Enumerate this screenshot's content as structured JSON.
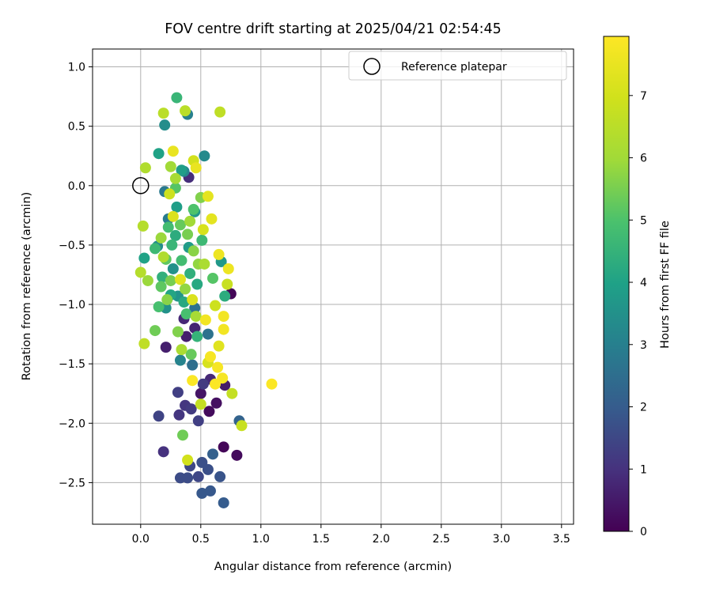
{
  "chart_data": {
    "type": "scatter",
    "title": "FOV centre drift starting at 2025/04/21 02:54:45",
    "xlabel": "Angular distance from reference (arcmin)",
    "ylabel": "Rotation from reference (arcmin)",
    "xlim": [
      -0.4,
      3.6
    ],
    "ylim": [
      -2.85,
      1.15
    ],
    "xticks": [
      0.0,
      0.5,
      1.0,
      1.5,
      2.0,
      2.5,
      3.0,
      3.5
    ],
    "xtick_labels": [
      "0.0",
      "0.5",
      "1.0",
      "1.5",
      "2.0",
      "2.5",
      "3.0",
      "3.5"
    ],
    "yticks": [
      1.0,
      0.5,
      0.0,
      -0.5,
      -1.0,
      -1.5,
      -2.0,
      -2.5
    ],
    "ytick_labels": [
      "1.0",
      "0.5",
      "0.0",
      "−0.5",
      "−1.0",
      "−1.5",
      "−2.0",
      "−2.5"
    ],
    "grid": true,
    "legend": {
      "location": "top-right",
      "entries": [
        "Reference platepar"
      ]
    },
    "reference_point": {
      "x": 0.0,
      "y": 0.0,
      "marker": "hollow-circle"
    },
    "colorbar": {
      "label": "Hours from first FF file",
      "colormap": "viridis",
      "range": [
        0,
        7.95
      ],
      "ticks": [
        0,
        1,
        2,
        3,
        4,
        5,
        6,
        7
      ],
      "tick_labels": [
        "0",
        "1",
        "2",
        "3",
        "4",
        "5",
        "6",
        "7"
      ]
    },
    "points": [
      {
        "x": 0.75,
        "y": -0.91,
        "c": 0.1
      },
      {
        "x": 0.69,
        "y": -2.2,
        "c": 0.1
      },
      {
        "x": 0.8,
        "y": -2.27,
        "c": 0.2
      },
      {
        "x": 0.57,
        "y": -1.9,
        "c": 0.2
      },
      {
        "x": 0.63,
        "y": -1.83,
        "c": 0.3
      },
      {
        "x": 0.5,
        "y": -1.75,
        "c": 0.4
      },
      {
        "x": 0.7,
        "y": -1.68,
        "c": 0.5
      },
      {
        "x": 0.21,
        "y": -1.36,
        "c": 0.6
      },
      {
        "x": 0.38,
        "y": -1.27,
        "c": 0.6
      },
      {
        "x": 0.45,
        "y": -1.2,
        "c": 0.7
      },
      {
        "x": 0.36,
        "y": -1.12,
        "c": 0.8
      },
      {
        "x": 0.58,
        "y": -1.63,
        "c": 0.8
      },
      {
        "x": 0.4,
        "y": 0.07,
        "c": 0.9
      },
      {
        "x": 0.19,
        "y": -2.24,
        "c": 1.0
      },
      {
        "x": 0.32,
        "y": -1.93,
        "c": 1.1
      },
      {
        "x": 0.37,
        "y": -1.85,
        "c": 1.1
      },
      {
        "x": 0.42,
        "y": -1.88,
        "c": 1.2
      },
      {
        "x": 0.52,
        "y": -1.67,
        "c": 1.2
      },
      {
        "x": 0.48,
        "y": -1.98,
        "c": 1.3
      },
      {
        "x": 0.31,
        "y": -1.74,
        "c": 1.3
      },
      {
        "x": 0.15,
        "y": -1.94,
        "c": 1.4
      },
      {
        "x": 0.41,
        "y": -2.36,
        "c": 1.5
      },
      {
        "x": 0.48,
        "y": -2.45,
        "c": 1.5
      },
      {
        "x": 0.33,
        "y": -2.46,
        "c": 1.6
      },
      {
        "x": 0.39,
        "y": -2.46,
        "c": 1.6
      },
      {
        "x": 0.51,
        "y": -2.33,
        "c": 1.7
      },
      {
        "x": 0.56,
        "y": -2.39,
        "c": 1.7
      },
      {
        "x": 0.66,
        "y": -2.45,
        "c": 1.8
      },
      {
        "x": 0.51,
        "y": -2.59,
        "c": 1.9
      },
      {
        "x": 0.58,
        "y": -2.57,
        "c": 1.9
      },
      {
        "x": 0.69,
        "y": -2.67,
        "c": 2.0
      },
      {
        "x": 0.6,
        "y": -2.26,
        "c": 2.1
      },
      {
        "x": 0.82,
        "y": -1.98,
        "c": 2.2
      },
      {
        "x": 0.43,
        "y": -1.51,
        "c": 2.5
      },
      {
        "x": 0.56,
        "y": -1.25,
        "c": 2.6
      },
      {
        "x": 0.45,
        "y": -1.03,
        "c": 2.6
      },
      {
        "x": 0.2,
        "y": -0.05,
        "c": 2.8
      },
      {
        "x": 0.23,
        "y": -0.28,
        "c": 2.9
      },
      {
        "x": 0.39,
        "y": 0.6,
        "c": 3.0
      },
      {
        "x": 0.33,
        "y": -1.47,
        "c": 3.1
      },
      {
        "x": 0.36,
        "y": 0.12,
        "c": 3.2
      },
      {
        "x": 0.53,
        "y": 0.25,
        "c": 3.3
      },
      {
        "x": 0.2,
        "y": 0.51,
        "c": 3.4
      },
      {
        "x": 0.14,
        "y": -0.51,
        "c": 3.4
      },
      {
        "x": 0.27,
        "y": -0.7,
        "c": 3.5
      },
      {
        "x": 0.21,
        "y": -1.03,
        "c": 3.5
      },
      {
        "x": 0.31,
        "y": -0.93,
        "c": 3.6
      },
      {
        "x": 0.45,
        "y": -0.22,
        "c": 3.7
      },
      {
        "x": 0.67,
        "y": -0.64,
        "c": 3.7
      },
      {
        "x": 0.4,
        "y": -0.52,
        "c": 3.8
      },
      {
        "x": 0.3,
        "y": -0.18,
        "c": 3.9
      },
      {
        "x": 0.34,
        "y": 0.13,
        "c": 3.9
      },
      {
        "x": 0.15,
        "y": 0.27,
        "c": 4.0
      },
      {
        "x": 0.03,
        "y": -0.61,
        "c": 4.0
      },
      {
        "x": 0.25,
        "y": -0.92,
        "c": 4.1
      },
      {
        "x": 0.47,
        "y": -0.83,
        "c": 4.2
      },
      {
        "x": 0.36,
        "y": -0.98,
        "c": 4.2
      },
      {
        "x": 0.7,
        "y": -0.93,
        "c": 4.3
      },
      {
        "x": 0.29,
        "y": -0.42,
        "c": 4.3
      },
      {
        "x": 0.41,
        "y": -0.74,
        "c": 4.4
      },
      {
        "x": 0.18,
        "y": -0.77,
        "c": 4.4
      },
      {
        "x": 0.47,
        "y": -1.27,
        "c": 4.5
      },
      {
        "x": 0.3,
        "y": 0.74,
        "c": 4.6
      },
      {
        "x": 0.26,
        "y": -0.5,
        "c": 4.6
      },
      {
        "x": 0.12,
        "y": -0.53,
        "c": 4.7
      },
      {
        "x": 0.51,
        "y": -0.46,
        "c": 4.7
      },
      {
        "x": 0.34,
        "y": -0.63,
        "c": 4.8
      },
      {
        "x": 0.23,
        "y": -0.35,
        "c": 4.8
      },
      {
        "x": 0.15,
        "y": -1.02,
        "c": 4.9
      },
      {
        "x": 0.38,
        "y": -1.08,
        "c": 4.9
      },
      {
        "x": 0.44,
        "y": -0.2,
        "c": 5.0
      },
      {
        "x": 0.29,
        "y": -0.02,
        "c": 5.1
      },
      {
        "x": 0.6,
        "y": -0.78,
        "c": 5.1
      },
      {
        "x": 0.17,
        "y": -0.85,
        "c": 5.2
      },
      {
        "x": 0.21,
        "y": -0.62,
        "c": 5.2
      },
      {
        "x": 0.33,
        "y": -0.33,
        "c": 5.3
      },
      {
        "x": 0.42,
        "y": -1.42,
        "c": 5.3
      },
      {
        "x": 0.35,
        "y": -2.1,
        "c": 5.4
      },
      {
        "x": 0.12,
        "y": -1.22,
        "c": 5.4
      },
      {
        "x": 0.25,
        "y": -0.8,
        "c": 5.5
      },
      {
        "x": 0.39,
        "y": -0.41,
        "c": 5.5
      },
      {
        "x": 0.5,
        "y": -0.1,
        "c": 5.6
      },
      {
        "x": 0.31,
        "y": -1.23,
        "c": 5.6
      },
      {
        "x": 0.44,
        "y": -0.55,
        "c": 5.7
      },
      {
        "x": 0.22,
        "y": -0.96,
        "c": 5.7
      },
      {
        "x": 0.37,
        "y": -0.87,
        "c": 5.8
      },
      {
        "x": 0.48,
        "y": -0.66,
        "c": 5.8
      },
      {
        "x": 0.17,
        "y": -0.44,
        "c": 5.9
      },
      {
        "x": 0.06,
        "y": -0.8,
        "c": 5.9
      },
      {
        "x": 0.25,
        "y": 0.16,
        "c": 6.0
      },
      {
        "x": 0.41,
        "y": -0.3,
        "c": 6.0
      },
      {
        "x": 0.29,
        "y": 0.06,
        "c": 6.1
      },
      {
        "x": 0.46,
        "y": -1.1,
        "c": 6.1
      },
      {
        "x": 0.53,
        "y": -0.66,
        "c": 6.2
      },
      {
        "x": 0.34,
        "y": -1.38,
        "c": 6.2
      },
      {
        "x": 0.19,
        "y": -0.6,
        "c": 6.3
      },
      {
        "x": 0.04,
        "y": 0.15,
        "c": 6.3
      },
      {
        "x": 0.02,
        "y": -0.34,
        "c": 6.4
      },
      {
        "x": 0.0,
        "y": -0.73,
        "c": 6.4
      },
      {
        "x": 0.37,
        "y": 0.63,
        "c": 6.5
      },
      {
        "x": 0.19,
        "y": 0.61,
        "c": 6.5
      },
      {
        "x": 0.66,
        "y": 0.62,
        "c": 6.6
      },
      {
        "x": 0.03,
        "y": -1.33,
        "c": 6.6
      },
      {
        "x": 0.5,
        "y": -1.84,
        "c": 6.7
      },
      {
        "x": 0.76,
        "y": -1.75,
        "c": 6.7
      },
      {
        "x": 0.84,
        "y": -2.02,
        "c": 6.8
      },
      {
        "x": 0.72,
        "y": -0.83,
        "c": 6.8
      },
      {
        "x": 0.62,
        "y": -1.01,
        "c": 6.9
      },
      {
        "x": 0.24,
        "y": -0.07,
        "c": 6.9
      },
      {
        "x": 0.44,
        "y": 0.21,
        "c": 7.0
      },
      {
        "x": 0.39,
        "y": -2.31,
        "c": 7.0
      },
      {
        "x": 0.56,
        "y": -1.49,
        "c": 7.1
      },
      {
        "x": 0.52,
        "y": -0.37,
        "c": 7.1
      },
      {
        "x": 0.27,
        "y": -0.26,
        "c": 7.2
      },
      {
        "x": 0.43,
        "y": -0.96,
        "c": 7.2
      },
      {
        "x": 0.65,
        "y": -1.35,
        "c": 7.3
      },
      {
        "x": 0.33,
        "y": -0.79,
        "c": 7.3
      },
      {
        "x": 0.56,
        "y": -0.09,
        "c": 7.4
      },
      {
        "x": 0.59,
        "y": -0.28,
        "c": 7.4
      },
      {
        "x": 0.46,
        "y": 0.15,
        "c": 7.5
      },
      {
        "x": 0.27,
        "y": 0.29,
        "c": 7.5
      },
      {
        "x": 0.65,
        "y": -0.58,
        "c": 7.6
      },
      {
        "x": 0.73,
        "y": -0.7,
        "c": 7.6
      },
      {
        "x": 0.69,
        "y": -1.1,
        "c": 7.7
      },
      {
        "x": 0.69,
        "y": -1.21,
        "c": 7.7
      },
      {
        "x": 0.64,
        "y": -1.53,
        "c": 7.8
      },
      {
        "x": 0.68,
        "y": -1.62,
        "c": 7.8
      },
      {
        "x": 1.09,
        "y": -1.67,
        "c": 7.9
      },
      {
        "x": 0.43,
        "y": -1.64,
        "c": 7.9
      },
      {
        "x": 0.62,
        "y": -1.67,
        "c": 7.9
      },
      {
        "x": 0.58,
        "y": -1.44,
        "c": 7.8
      },
      {
        "x": 0.54,
        "y": -1.13,
        "c": 7.7
      }
    ]
  }
}
